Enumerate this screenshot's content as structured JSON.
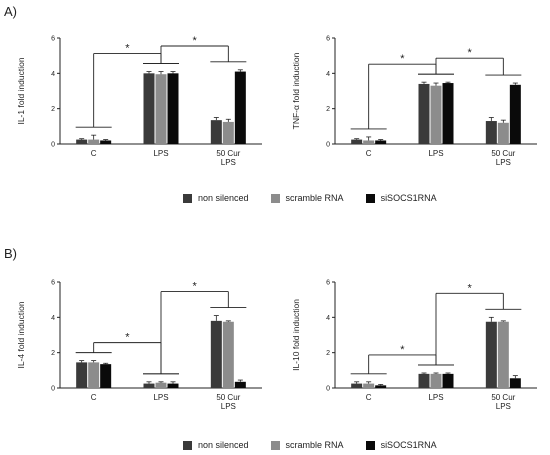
{
  "panels": {
    "a_label": "A)",
    "b_label": "B)"
  },
  "colors": {
    "non_silenced": "#3a3a3a",
    "scramble": "#8c8c8c",
    "siSOCS1": "#0a0a0a"
  },
  "legend": {
    "non_silenced": "non silenced",
    "scramble": "scramble RNA",
    "siSOCS1": "siSOCS1RNA"
  },
  "chart_data": [
    {
      "id": "il1",
      "type": "bar",
      "panel": "A",
      "ylabel": "IL-1  fold induction",
      "ylim": [
        0,
        6
      ],
      "yticks": [
        0,
        2,
        4,
        6
      ],
      "categories": [
        "C",
        "LPS",
        "50 Cur\nLPS"
      ],
      "series": [
        {
          "name": "non silenced",
          "values": [
            0.25,
            4.0,
            1.35
          ],
          "errors": [
            0.05,
            0.1,
            0.15
          ]
        },
        {
          "name": "scramble RNA",
          "values": [
            0.25,
            3.95,
            1.25
          ],
          "errors": [
            0.25,
            0.15,
            0.15
          ]
        },
        {
          "name": "siSOCS1RNA",
          "values": [
            0.2,
            4.0,
            4.1
          ],
          "errors": [
            0.05,
            0.1,
            0.1
          ]
        }
      ],
      "sig": [
        {
          "text": "*"
        },
        {
          "text": "*"
        }
      ]
    },
    {
      "id": "tnf",
      "type": "bar",
      "panel": "A",
      "ylabel": "TNF-α fold induction",
      "ylim": [
        0,
        6
      ],
      "yticks": [
        0,
        2,
        4,
        6
      ],
      "categories": [
        "C",
        "LPS",
        "50 Cur\nLPS"
      ],
      "series": [
        {
          "name": "non silenced",
          "values": [
            0.25,
            3.4,
            1.3
          ],
          "errors": [
            0.05,
            0.1,
            0.2
          ]
        },
        {
          "name": "scramble RNA",
          "values": [
            0.2,
            3.3,
            1.2
          ],
          "errors": [
            0.2,
            0.15,
            0.15
          ]
        },
        {
          "name": "siSOCS1RNA",
          "values": [
            0.2,
            3.45,
            3.35
          ],
          "errors": [
            0.05,
            0.05,
            0.1
          ]
        }
      ],
      "sig": [
        {
          "text": "*"
        },
        {
          "text": "*"
        }
      ]
    },
    {
      "id": "il4",
      "type": "bar",
      "panel": "B",
      "ylabel": "IL-4  fold induction",
      "ylim": [
        0,
        6
      ],
      "yticks": [
        0,
        2,
        4,
        6
      ],
      "categories": [
        "C",
        "LPS",
        "50 Cur\nLPS"
      ],
      "series": [
        {
          "name": "non silenced",
          "values": [
            1.45,
            0.25,
            3.8
          ],
          "errors": [
            0.1,
            0.1,
            0.3
          ]
        },
        {
          "name": "scramble RNA",
          "values": [
            1.45,
            0.3,
            3.75
          ],
          "errors": [
            0.1,
            0.05,
            0.05
          ]
        },
        {
          "name": "siSOCS1RNA",
          "values": [
            1.35,
            0.25,
            0.35
          ],
          "errors": [
            0.05,
            0.1,
            0.1
          ]
        }
      ],
      "sig": [
        {
          "text": "*"
        },
        {
          "text": "*"
        }
      ]
    },
    {
      "id": "il10",
      "type": "bar",
      "panel": "B",
      "ylabel": "IL-10  fold induction",
      "ylim": [
        0,
        6
      ],
      "yticks": [
        0,
        2,
        4,
        6
      ],
      "categories": [
        "C",
        "LPS",
        "50 Cur\nLPS"
      ],
      "series": [
        {
          "name": "non silenced",
          "values": [
            0.25,
            0.8,
            3.75
          ],
          "errors": [
            0.1,
            0.05,
            0.25
          ]
        },
        {
          "name": "scramble RNA",
          "values": [
            0.25,
            0.8,
            3.75
          ],
          "errors": [
            0.1,
            0.05,
            0.05
          ]
        },
        {
          "name": "siSOCS1RNA",
          "values": [
            0.15,
            0.8,
            0.55
          ],
          "errors": [
            0.05,
            0.05,
            0.15
          ]
        }
      ],
      "sig": [
        {
          "text": "*"
        },
        {
          "text": "*"
        }
      ]
    }
  ]
}
